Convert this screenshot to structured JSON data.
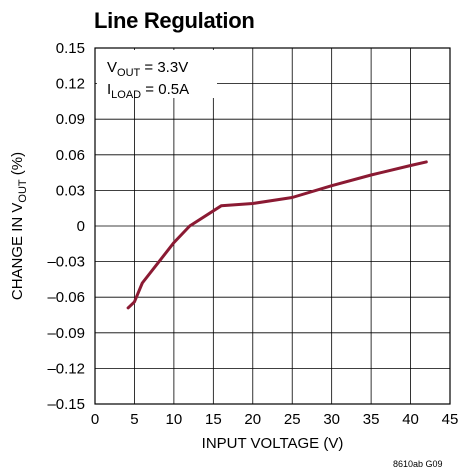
{
  "chart_data": {
    "type": "line",
    "title": "Line Regulation",
    "xlabel": "INPUT VOLTAGE (V)",
    "ylabel": {
      "main": "CHANGE IN V",
      "sub": "OUT",
      "suffix": " (%)"
    },
    "xlim": [
      0,
      45
    ],
    "ylim": [
      -0.15,
      0.15
    ],
    "xticks": [
      "0",
      "5",
      "10",
      "15",
      "20",
      "25",
      "30",
      "35",
      "40",
      "45"
    ],
    "yticks": [
      "0.15",
      "0.12",
      "0.09",
      "0.06",
      "0.03",
      "0",
      "–0.03",
      "–0.06",
      "–0.09",
      "–0.12",
      "–0.15"
    ],
    "grid": true,
    "annotations": [
      {
        "main": "V",
        "sub": "OUT",
        "rest": " = 3.3V"
      },
      {
        "main": "I",
        "sub": "LOAD",
        "rest": " = 0.5A"
      }
    ],
    "series": [
      {
        "color": "#8b1a33",
        "x": [
          4.2,
          5.0,
          6.0,
          8.0,
          10.0,
          12.0,
          16.0,
          20.0,
          25.0,
          30.0,
          35.0,
          40.0,
          42.0
        ],
        "y": [
          -0.069,
          -0.064,
          -0.048,
          -0.031,
          -0.014,
          0.0,
          0.017,
          0.019,
          0.024,
          0.034,
          0.043,
          0.051,
          0.054
        ]
      }
    ]
  },
  "figure_code": "8610ab G09"
}
